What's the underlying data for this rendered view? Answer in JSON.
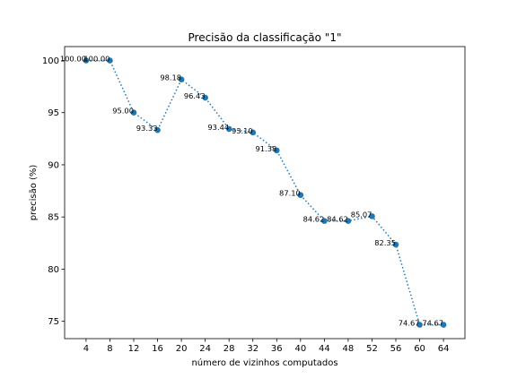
{
  "chart_data": {
    "type": "line",
    "title": "Precisão da classificação \"1\"",
    "xlabel": "número de vizinhos computados",
    "ylabel": "precisão (%)",
    "x": [
      4,
      8,
      12,
      16,
      20,
      24,
      28,
      32,
      36,
      40,
      44,
      48,
      52,
      56,
      60,
      64
    ],
    "y": [
      100.0,
      100.0,
      95.0,
      93.33,
      98.18,
      96.43,
      93.44,
      93.1,
      91.38,
      87.1,
      84.62,
      84.62,
      85.07,
      82.35,
      74.67,
      74.67
    ],
    "data_labels": [
      "100.00",
      "100.00",
      "95.00",
      "93.33",
      "98.18",
      "96.43",
      "93.44",
      "93.10",
      "91.38",
      "87.10",
      "84.62",
      "84.62",
      "85.07",
      "82.35",
      "74.67",
      "74.67"
    ],
    "xticks": [
      "4",
      "8",
      "12",
      "16",
      "20",
      "24",
      "28",
      "32",
      "36",
      "40",
      "44",
      "48",
      "52",
      "56",
      "60",
      "64"
    ],
    "yticks": [
      "75",
      "80",
      "85",
      "90",
      "95",
      "100"
    ],
    "xlim": [
      0.4,
      67.6
    ],
    "ylim": [
      73.34,
      101.33
    ],
    "line_style": "dotted",
    "marker": "circle",
    "color": "#1f77b4",
    "grid": false
  }
}
